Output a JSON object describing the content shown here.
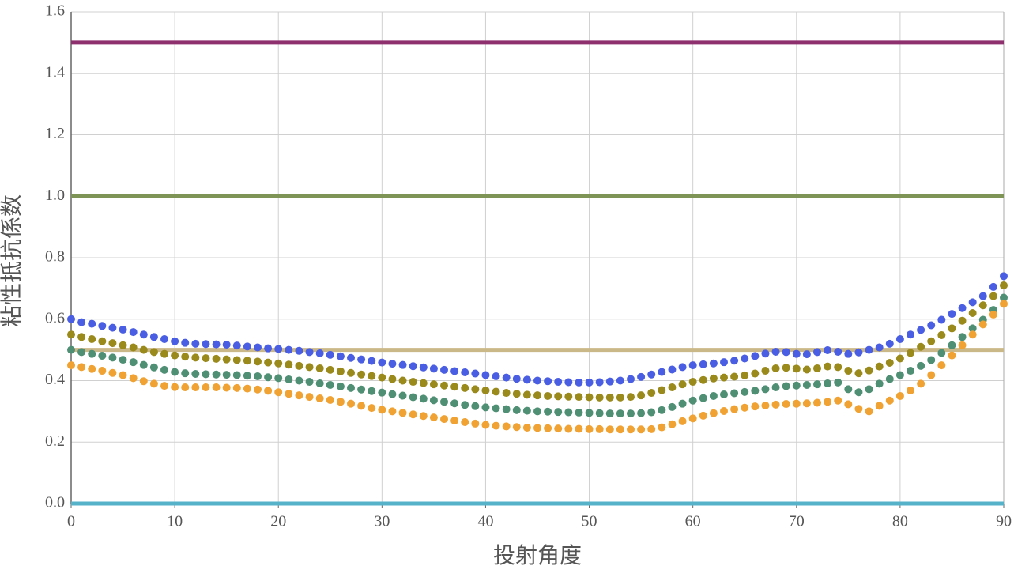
{
  "chart_data": {
    "type": "scatter",
    "x_label": "投射角度",
    "y_label": "粘性抵抗係数",
    "xlim": [
      0,
      90
    ],
    "xticks": [
      0,
      10,
      20,
      30,
      40,
      50,
      60,
      70,
      80,
      90
    ],
    "ylim": [
      0,
      1.6
    ],
    "yticks": [
      {
        "value": 0,
        "label": "0.0"
      },
      0.2,
      0.4,
      0.6,
      0.8,
      {
        "value": 1,
        "label": "1.0"
      },
      1.2,
      1.4,
      1.6
    ],
    "grid": true,
    "hlines": [
      {
        "value": 1.5,
        "color": "#8e2f6e"
      },
      {
        "value": 1,
        "color": "#7d9456"
      },
      {
        "value": 0.5,
        "color": "#cbb888"
      },
      {
        "value": 0,
        "color": "#56b2c8"
      }
    ],
    "x": [
      0,
      1,
      2,
      3,
      4,
      5,
      6,
      7,
      8,
      9,
      10,
      11,
      12,
      13,
      14,
      15,
      16,
      17,
      18,
      19,
      20,
      21,
      22,
      23,
      24,
      25,
      26,
      27,
      28,
      29,
      30,
      31,
      32,
      33,
      34,
      35,
      36,
      37,
      38,
      39,
      40,
      41,
      42,
      43,
      44,
      45,
      46,
      47,
      48,
      49,
      50,
      51,
      52,
      53,
      54,
      55,
      56,
      57,
      58,
      59,
      60,
      61,
      62,
      63,
      64,
      65,
      66,
      67,
      68,
      69,
      70,
      71,
      72,
      73,
      74,
      75,
      76,
      77,
      78,
      79,
      80,
      81,
      82,
      83,
      84,
      85,
      86,
      87,
      88,
      89,
      90
    ],
    "series": [
      {
        "color": "#4a5ee3",
        "values": [
          0.6,
          0.59,
          0.585,
          0.578,
          0.572,
          0.566,
          0.558,
          0.55,
          0.542,
          0.535,
          0.528,
          0.523,
          0.52,
          0.519,
          0.518,
          0.517,
          0.514,
          0.511,
          0.508,
          0.505,
          0.503,
          0.5,
          0.497,
          0.493,
          0.489,
          0.484,
          0.479,
          0.474,
          0.469,
          0.464,
          0.459,
          0.455,
          0.451,
          0.447,
          0.443,
          0.439,
          0.435,
          0.431,
          0.427,
          0.423,
          0.418,
          0.414,
          0.41,
          0.406,
          0.403,
          0.4,
          0.398,
          0.396,
          0.395,
          0.394,
          0.394,
          0.395,
          0.397,
          0.4,
          0.405,
          0.412,
          0.42,
          0.428,
          0.436,
          0.444,
          0.45,
          0.453,
          0.456,
          0.46,
          0.465,
          0.472,
          0.48,
          0.488,
          0.494,
          0.493,
          0.487,
          0.486,
          0.493,
          0.499,
          0.494,
          0.487,
          0.492,
          0.5,
          0.508,
          0.52,
          0.535,
          0.55,
          0.565,
          0.58,
          0.598,
          0.617,
          0.636,
          0.655,
          0.675,
          0.705,
          0.74
        ]
      },
      {
        "color": "#9a8a1c",
        "values": [
          0.55,
          0.542,
          0.535,
          0.528,
          0.522,
          0.515,
          0.508,
          0.5,
          0.493,
          0.487,
          0.482,
          0.478,
          0.475,
          0.473,
          0.471,
          0.469,
          0.467,
          0.465,
          0.462,
          0.459,
          0.456,
          0.452,
          0.448,
          0.444,
          0.44,
          0.435,
          0.43,
          0.425,
          0.42,
          0.415,
          0.41,
          0.405,
          0.4,
          0.396,
          0.392,
          0.388,
          0.384,
          0.38,
          0.376,
          0.372,
          0.368,
          0.364,
          0.36,
          0.357,
          0.354,
          0.352,
          0.35,
          0.349,
          0.348,
          0.347,
          0.346,
          0.345,
          0.345,
          0.345,
          0.347,
          0.352,
          0.36,
          0.369,
          0.378,
          0.388,
          0.396,
          0.402,
          0.407,
          0.41,
          0.413,
          0.417,
          0.423,
          0.432,
          0.44,
          0.442,
          0.439,
          0.436,
          0.44,
          0.446,
          0.444,
          0.432,
          0.424,
          0.433,
          0.446,
          0.458,
          0.472,
          0.49,
          0.51,
          0.528,
          0.548,
          0.57,
          0.595,
          0.62,
          0.645,
          0.675,
          0.71
        ]
      },
      {
        "color": "#4f8f74",
        "values": [
          0.5,
          0.493,
          0.487,
          0.481,
          0.475,
          0.468,
          0.46,
          0.451,
          0.443,
          0.435,
          0.428,
          0.424,
          0.422,
          0.421,
          0.42,
          0.419,
          0.418,
          0.416,
          0.414,
          0.411,
          0.408,
          0.404,
          0.4,
          0.396,
          0.391,
          0.386,
          0.381,
          0.376,
          0.371,
          0.366,
          0.361,
          0.356,
          0.351,
          0.346,
          0.341,
          0.336,
          0.331,
          0.326,
          0.321,
          0.317,
          0.313,
          0.31,
          0.307,
          0.304,
          0.302,
          0.3,
          0.299,
          0.298,
          0.297,
          0.296,
          0.295,
          0.294,
          0.293,
          0.293,
          0.293,
          0.294,
          0.297,
          0.304,
          0.314,
          0.325,
          0.335,
          0.343,
          0.35,
          0.355,
          0.359,
          0.363,
          0.367,
          0.372,
          0.378,
          0.382,
          0.384,
          0.386,
          0.388,
          0.391,
          0.394,
          0.372,
          0.362,
          0.372,
          0.39,
          0.405,
          0.418,
          0.432,
          0.448,
          0.467,
          0.49,
          0.515,
          0.542,
          0.57,
          0.598,
          0.63,
          0.67
        ]
      },
      {
        "color": "#f0a232",
        "values": [
          0.45,
          0.444,
          0.438,
          0.432,
          0.425,
          0.418,
          0.408,
          0.398,
          0.39,
          0.383,
          0.379,
          0.378,
          0.378,
          0.378,
          0.378,
          0.377,
          0.376,
          0.374,
          0.371,
          0.367,
          0.362,
          0.357,
          0.352,
          0.347,
          0.342,
          0.337,
          0.331,
          0.325,
          0.318,
          0.311,
          0.305,
          0.3,
          0.295,
          0.29,
          0.285,
          0.28,
          0.275,
          0.27,
          0.265,
          0.26,
          0.256,
          0.253,
          0.251,
          0.249,
          0.247,
          0.246,
          0.245,
          0.244,
          0.243,
          0.243,
          0.242,
          0.242,
          0.241,
          0.241,
          0.241,
          0.241,
          0.242,
          0.248,
          0.258,
          0.268,
          0.277,
          0.286,
          0.294,
          0.301,
          0.307,
          0.312,
          0.316,
          0.319,
          0.322,
          0.324,
          0.325,
          0.326,
          0.328,
          0.331,
          0.335,
          0.323,
          0.308,
          0.3,
          0.318,
          0.335,
          0.35,
          0.368,
          0.39,
          0.418,
          0.45,
          0.482,
          0.515,
          0.55,
          0.583,
          0.615,
          0.65
        ]
      }
    ]
  }
}
